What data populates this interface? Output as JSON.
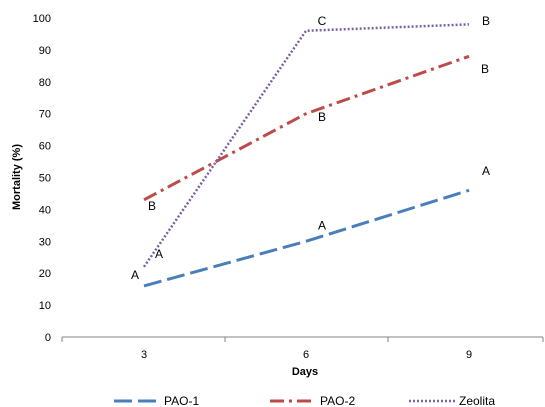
{
  "chart_data": {
    "type": "line",
    "title": "",
    "xlabel": "Days",
    "ylabel": "Mortality (%)",
    "x": [
      3,
      6,
      9
    ],
    "xtick_labels": [
      "3",
      "6",
      "9"
    ],
    "ylim": [
      0,
      100
    ],
    "yticks": [
      0,
      10,
      20,
      30,
      40,
      50,
      60,
      70,
      80,
      90,
      100
    ],
    "grid": false,
    "legend_position": "bottom",
    "series": [
      {
        "name": "PAO-1",
        "values": [
          16,
          30,
          46
        ],
        "color": "#4A7EBB",
        "style": "dashed"
      },
      {
        "name": "PAO-2",
        "values": [
          43,
          70,
          88
        ],
        "color": "#BE4B48",
        "style": "dash-dot"
      },
      {
        "name": "Zeolita",
        "values": [
          22,
          96,
          98
        ],
        "color": "#7D60A0",
        "style": "dotted"
      }
    ],
    "annotations": [
      {
        "text": "A",
        "x": 3,
        "y": 19.5
      },
      {
        "text": "A",
        "x": 3,
        "y": 26
      },
      {
        "text": "B",
        "x": 3,
        "y": 41
      },
      {
        "text": "A",
        "x": 6,
        "y": 35
      },
      {
        "text": "B",
        "x": 6,
        "y": 69
      },
      {
        "text": "C",
        "x": 6,
        "y": 99
      },
      {
        "text": "A",
        "x": 9,
        "y": 52
      },
      {
        "text": "B",
        "x": 9,
        "y": 84
      },
      {
        "text": "B",
        "x": 9,
        "y": 99
      }
    ]
  }
}
